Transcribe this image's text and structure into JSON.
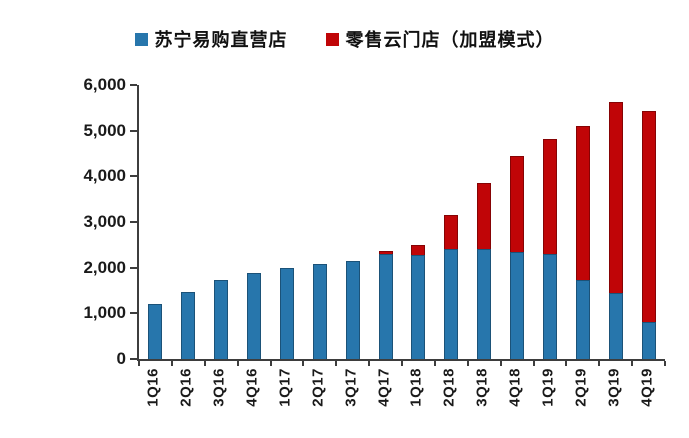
{
  "colors": {
    "series_blue": "#2776AC",
    "series_red": "#C00507",
    "axis": "#3d3d3d",
    "text": "#1a1a1a",
    "background": "#ffffff"
  },
  "legend": {
    "items": [
      {
        "label": "苏宁易购直营店",
        "color": "#2776AC"
      },
      {
        "label": "零售云门店（加盟模式）",
        "color": "#C00507"
      }
    ]
  },
  "chart_data": {
    "type": "bar",
    "stacked": true,
    "title": "",
    "xlabel": "",
    "ylabel": "",
    "grid": false,
    "legend_position": "top-center",
    "ylim": [
      0,
      6000
    ],
    "ytick_interval": 1000,
    "ytick_labels": [
      "0",
      "1,000",
      "2,000",
      "3,000",
      "4,000",
      "5,000",
      "6,000"
    ],
    "categories": [
      "1Q16",
      "2Q16",
      "3Q16",
      "4Q16",
      "1Q17",
      "2Q17",
      "3Q17",
      "4Q17",
      "1Q18",
      "2Q18",
      "3Q18",
      "4Q18",
      "1Q19",
      "2Q19",
      "3Q19",
      "4Q19"
    ],
    "series": [
      {
        "name": "苏宁易购直营店",
        "color": "#2776AC",
        "values": [
          1200,
          1470,
          1720,
          1890,
          1990,
          2090,
          2150,
          2300,
          2270,
          2400,
          2420,
          2340,
          2300,
          1740,
          1440,
          820
        ]
      },
      {
        "name": "零售云门店（加盟模式）",
        "color": "#C00507",
        "values": [
          0,
          0,
          0,
          0,
          0,
          0,
          0,
          60,
          230,
          760,
          1440,
          2110,
          2520,
          3370,
          4180,
          4610
        ]
      }
    ],
    "totals": [
      1200,
      1470,
      1720,
      1890,
      1990,
      2090,
      2150,
      2360,
      2500,
      3160,
      3860,
      4450,
      4820,
      5110,
      5620,
      5430
    ]
  }
}
